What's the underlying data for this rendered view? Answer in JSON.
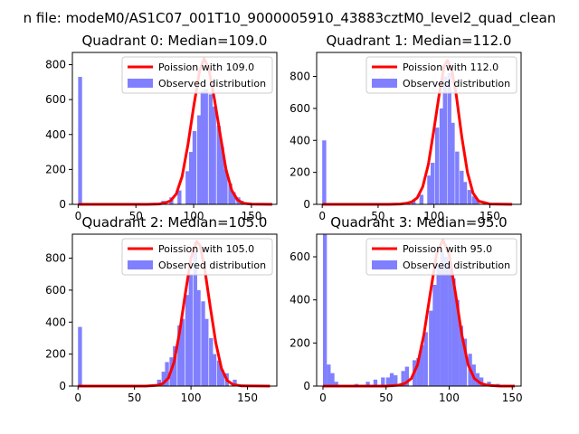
{
  "figure": {
    "suptitle": "n file: modeM0/AS1C07_001T10_9000005910_43883cztM0_level2_quad_clean"
  },
  "colors": {
    "poisson_line": "#ff0000",
    "histogram": "#8080ff",
    "axes": "#000000",
    "background": "#ffffff"
  },
  "chart_data": [
    {
      "type": "bar",
      "title": "Quadrant 0: Median=109.0",
      "xlabel": "",
      "ylabel": "",
      "xlim": [
        -5,
        172
      ],
      "ylim": [
        0,
        870
      ],
      "xticks": [
        0,
        50,
        100,
        150
      ],
      "yticks": [
        0,
        200,
        400,
        600,
        800
      ],
      "legend": "top-right",
      "series": [
        {
          "name": "Poission with 109.0",
          "kind": "line",
          "x": [
            0,
            60,
            70,
            75,
            80,
            85,
            90,
            95,
            100,
            105,
            109,
            113,
            118,
            123,
            128,
            133,
            138,
            143,
            150,
            168
          ],
          "y": [
            0,
            0,
            2,
            8,
            20,
            60,
            160,
            340,
            560,
            760,
            835,
            780,
            600,
            400,
            200,
            80,
            25,
            6,
            1,
            0
          ]
        },
        {
          "name": "Observed distribution",
          "kind": "hist",
          "bin_width": 3.4,
          "bins": [
            [
              0,
              730
            ],
            [
              72,
              20
            ],
            [
              79,
              40
            ],
            [
              86,
              80
            ],
            [
              93,
              190
            ],
            [
              96,
              300
            ],
            [
              99,
              420
            ],
            [
              103,
              510
            ],
            [
              106,
              650
            ],
            [
              109,
              660
            ],
            [
              113,
              630
            ],
            [
              116,
              560
            ],
            [
              120,
              450
            ],
            [
              123,
              330
            ],
            [
              126,
              200
            ],
            [
              130,
              120
            ],
            [
              133,
              70
            ],
            [
              137,
              40
            ],
            [
              140,
              20
            ],
            [
              147,
              10
            ]
          ]
        }
      ]
    },
    {
      "type": "bar",
      "title": "Quadrant 1: Median=112.0",
      "xlabel": "",
      "ylabel": "",
      "xlim": [
        -5,
        178
      ],
      "ylim": [
        0,
        950
      ],
      "xticks": [
        0,
        50,
        100,
        150
      ],
      "yticks": [
        0,
        200,
        400,
        600,
        800
      ],
      "legend": "top-right",
      "series": [
        {
          "name": "Poission with 112.0",
          "kind": "line",
          "x": [
            0,
            60,
            70,
            75,
            80,
            85,
            90,
            95,
            100,
            105,
            109,
            112,
            116,
            120,
            125,
            130,
            135,
            140,
            150,
            170
          ],
          "y": [
            0,
            0,
            2,
            6,
            15,
            40,
            110,
            250,
            470,
            700,
            860,
            900,
            840,
            680,
            420,
            200,
            70,
            20,
            2,
            0
          ]
        },
        {
          "name": "Observed distribution",
          "kind": "hist",
          "bin_width": 3.6,
          "bins": [
            [
              0,
              400
            ],
            [
              80,
              20
            ],
            [
              87,
              60
            ],
            [
              94,
              180
            ],
            [
              97,
              260
            ],
            [
              101,
              480
            ],
            [
              105,
              600
            ],
            [
              108,
              800
            ],
            [
              112,
              820
            ],
            [
              115,
              510
            ],
            [
              119,
              330
            ],
            [
              123,
              210
            ],
            [
              126,
              140
            ],
            [
              130,
              90
            ],
            [
              134,
              50
            ],
            [
              137,
              30
            ],
            [
              144,
              10
            ]
          ]
        }
      ]
    },
    {
      "type": "bar",
      "title": "Quadrant 2: Median=105.0",
      "xlabel": "",
      "ylabel": "",
      "xlim": [
        -5,
        176
      ],
      "ylim": [
        0,
        950
      ],
      "xticks": [
        0,
        50,
        100,
        150
      ],
      "yticks": [
        0,
        200,
        400,
        600,
        800
      ],
      "legend": "top-right",
      "series": [
        {
          "name": "Poission with 105.0",
          "kind": "line",
          "x": [
            0,
            60,
            70,
            75,
            80,
            85,
            90,
            95,
            100,
            105,
            108,
            112,
            117,
            122,
            127,
            132,
            137,
            145,
            170
          ],
          "y": [
            0,
            0,
            5,
            15,
            50,
            150,
            340,
            580,
            800,
            905,
            880,
            740,
            500,
            270,
            110,
            35,
            10,
            1,
            0
          ]
        },
        {
          "name": "Observed distribution",
          "kind": "hist",
          "bin_width": 3.5,
          "bins": [
            [
              0,
              370
            ],
            [
              70,
              40
            ],
            [
              74,
              90
            ],
            [
              77,
              150
            ],
            [
              81,
              180
            ],
            [
              84,
              250
            ],
            [
              88,
              380
            ],
            [
              91,
              420
            ],
            [
              95,
              570
            ],
            [
              98,
              700
            ],
            [
              102,
              840
            ],
            [
              105,
              600
            ],
            [
              109,
              530
            ],
            [
              112,
              420
            ],
            [
              116,
              300
            ],
            [
              119,
              200
            ],
            [
              123,
              160
            ],
            [
              126,
              100
            ],
            [
              130,
              80
            ],
            [
              137,
              40
            ],
            [
              144,
              10
            ]
          ]
        }
      ]
    },
    {
      "type": "bar",
      "title": "Quadrant 3: Median=95.0",
      "xlabel": "",
      "ylabel": "",
      "xlim": [
        -5,
        157
      ],
      "ylim": [
        0,
        705
      ],
      "xticks": [
        0,
        50,
        100,
        150
      ],
      "yticks": [
        0,
        200,
        400,
        600
      ],
      "legend": "top-right",
      "series": [
        {
          "name": "Poission with 95.0",
          "kind": "line",
          "x": [
            0,
            50,
            60,
            65,
            70,
            75,
            80,
            85,
            90,
            95,
            100,
            105,
            110,
            115,
            120,
            125,
            130,
            140,
            152
          ],
          "y": [
            0,
            0,
            4,
            12,
            35,
            100,
            240,
            430,
            610,
            680,
            610,
            430,
            240,
            100,
            35,
            12,
            4,
            0,
            0
          ]
        },
        {
          "name": "Observed distribution",
          "kind": "hist",
          "bin_width": 3.1,
          "bins": [
            [
              0,
              710
            ],
            [
              3,
              100
            ],
            [
              6,
              60
            ],
            [
              9,
              20
            ],
            [
              25,
              10
            ],
            [
              34,
              20
            ],
            [
              40,
              30
            ],
            [
              46,
              40
            ],
            [
              50,
              40
            ],
            [
              53,
              60
            ],
            [
              56,
              50
            ],
            [
              62,
              70
            ],
            [
              65,
              90
            ],
            [
              71,
              120
            ],
            [
              74,
              130
            ],
            [
              77,
              190
            ],
            [
              80,
              250
            ],
            [
              84,
              350
            ],
            [
              87,
              470
            ],
            [
              90,
              560
            ],
            [
              93,
              620
            ],
            [
              96,
              600
            ],
            [
              99,
              560
            ],
            [
              102,
              500
            ],
            [
              105,
              400
            ],
            [
              108,
              280
            ],
            [
              111,
              220
            ],
            [
              115,
              150
            ],
            [
              118,
              100
            ],
            [
              121,
              60
            ],
            [
              124,
              40
            ],
            [
              130,
              20
            ],
            [
              137,
              10
            ]
          ]
        }
      ]
    }
  ]
}
